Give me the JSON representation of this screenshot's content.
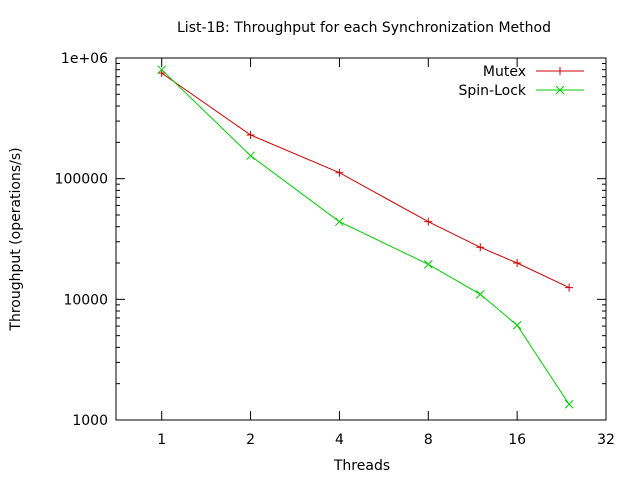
{
  "chart_data": {
    "type": "line",
    "title": "List-1B: Throughput for each Synchronization Method",
    "xlabel": "Threads",
    "ylabel": "Throughput (operations/s)",
    "xscale": "log2",
    "yscale": "log10",
    "xlim": [
      0.7,
      32
    ],
    "ylim": [
      1000,
      1000000
    ],
    "x_ticks": [
      {
        "value": 1,
        "label": "1"
      },
      {
        "value": 2,
        "label": "2"
      },
      {
        "value": 4,
        "label": "4"
      },
      {
        "value": 8,
        "label": "8"
      },
      {
        "value": 16,
        "label": "16"
      },
      {
        "value": 32,
        "label": "32"
      }
    ],
    "y_ticks": [
      {
        "value": 1000,
        "label": "1000"
      },
      {
        "value": 10000,
        "label": "10000"
      },
      {
        "value": 100000,
        "label": "100000"
      },
      {
        "value": 1000000,
        "label": "1e+06"
      }
    ],
    "grid": false,
    "legend_position": "top-right",
    "series": [
      {
        "name": "Mutex",
        "color": "#cc0000",
        "marker": "plus",
        "x": [
          1,
          2,
          4,
          8,
          12,
          16,
          24
        ],
        "y": [
          750000,
          230000,
          112000,
          44000,
          27000,
          20000,
          12500
        ]
      },
      {
        "name": "Spin-Lock",
        "color": "#00cc00",
        "marker": "cross",
        "x": [
          1,
          2,
          4,
          8,
          12,
          16,
          24
        ],
        "y": [
          800000,
          155000,
          44000,
          19500,
          11000,
          6100,
          1350
        ]
      }
    ]
  }
}
